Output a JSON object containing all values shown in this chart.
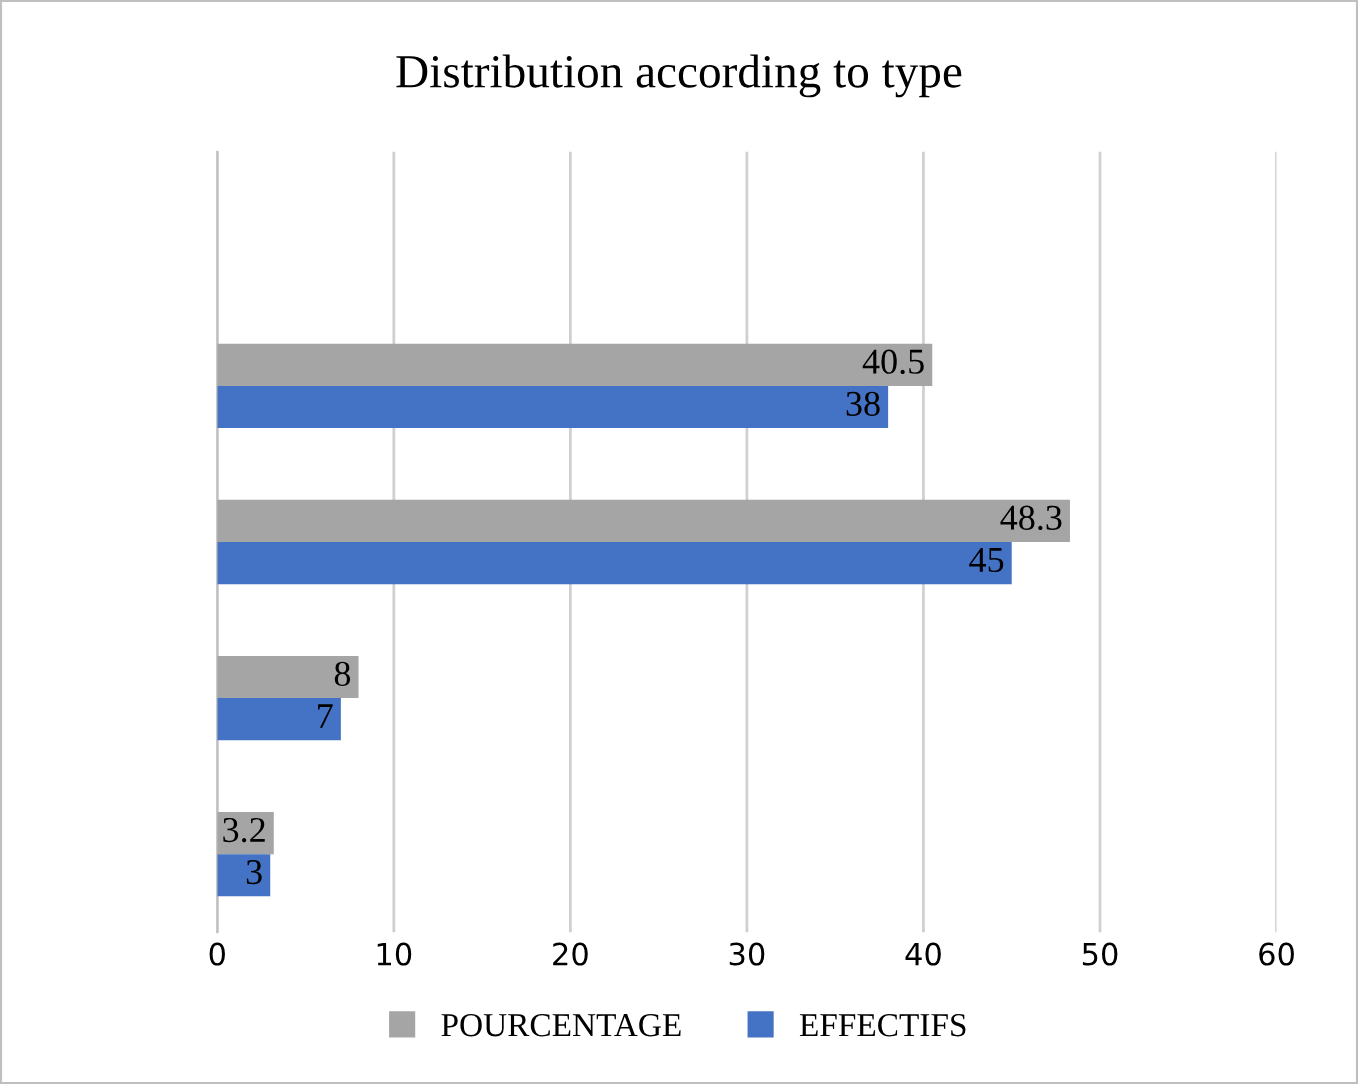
{
  "chart_data": {
    "type": "bar",
    "orientation": "horizontal",
    "title": "Distribution according to type",
    "categories": [
      null,
      null,
      null,
      null,
      null
    ],
    "series": [
      {
        "name": "POURCENTAGE",
        "color": "#a5a5a5",
        "values": [
          null,
          40.5,
          48.3,
          8,
          3.2
        ]
      },
      {
        "name": "EFFECTIFS",
        "color": "#4472c4",
        "values": [
          null,
          38,
          45,
          7,
          3
        ]
      }
    ],
    "xlim": [
      0,
      60
    ],
    "xticks": [
      0,
      10,
      20,
      30,
      40,
      50,
      60
    ],
    "grid": "x",
    "legend": "bottom",
    "data_labels": true
  }
}
